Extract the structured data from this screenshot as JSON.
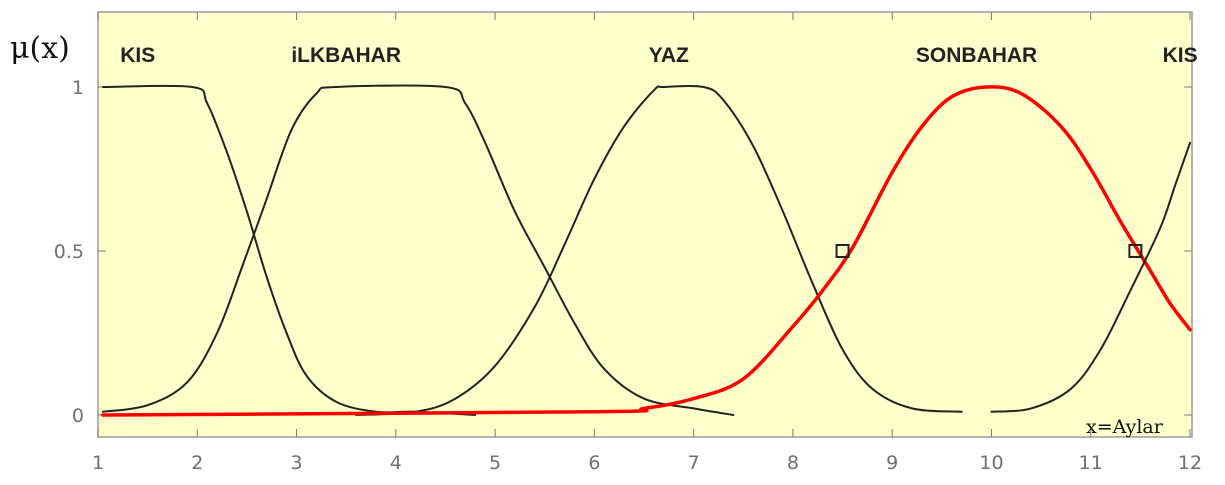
{
  "chart_data": {
    "type": "line",
    "ylabel": "μ(x)",
    "xlabel": "x=Aylar",
    "xlim": [
      1,
      12
    ],
    "ylim": [
      0,
      1
    ],
    "x_ticks": [
      "1",
      "2",
      "3",
      "4",
      "5",
      "6",
      "7",
      "8",
      "9",
      "10",
      "11",
      "12"
    ],
    "y_ticks": [
      "0",
      "0.5",
      "1"
    ],
    "grid": false,
    "background_color": "#ffffcc",
    "highlight_color": "#ff0000",
    "series": [
      {
        "name": "KIS",
        "color": "#222222",
        "label_x": 1.4,
        "points": [
          [
            1.05,
            1
          ],
          [
            1.95,
            1
          ],
          [
            2.1,
            0.95
          ],
          [
            2.3,
            0.8
          ],
          [
            2.5,
            0.62
          ],
          [
            2.7,
            0.42
          ],
          [
            2.9,
            0.25
          ],
          [
            3.1,
            0.12
          ],
          [
            3.4,
            0.04
          ],
          [
            3.8,
            0.01
          ],
          [
            4.2,
            0.01
          ],
          [
            4.8,
            0
          ]
        ]
      },
      {
        "name": "iLKBAHAR",
        "color": "#222222",
        "label_x": 3.5,
        "points": [
          [
            1.05,
            0.01
          ],
          [
            1.5,
            0.03
          ],
          [
            1.9,
            0.1
          ],
          [
            2.2,
            0.25
          ],
          [
            2.45,
            0.45
          ],
          [
            2.7,
            0.66
          ],
          [
            2.95,
            0.87
          ],
          [
            3.2,
            0.98
          ],
          [
            3.4,
            1
          ],
          [
            4.5,
            1
          ],
          [
            4.7,
            0.95
          ],
          [
            4.9,
            0.83
          ],
          [
            5.2,
            0.62
          ],
          [
            5.5,
            0.45
          ],
          [
            5.8,
            0.28
          ],
          [
            6.1,
            0.14
          ],
          [
            6.5,
            0.05
          ],
          [
            7.0,
            0.02
          ],
          [
            7.4,
            0
          ]
        ]
      },
      {
        "name": "YAZ",
        "color": "#222222",
        "label_x": 6.75,
        "points": [
          [
            3.6,
            0
          ],
          [
            4.2,
            0.01
          ],
          [
            4.6,
            0.05
          ],
          [
            5.0,
            0.15
          ],
          [
            5.4,
            0.33
          ],
          [
            5.7,
            0.52
          ],
          [
            6.0,
            0.72
          ],
          [
            6.3,
            0.88
          ],
          [
            6.6,
            0.99
          ],
          [
            6.7,
            1
          ],
          [
            7.1,
            1
          ],
          [
            7.3,
            0.96
          ],
          [
            7.6,
            0.82
          ],
          [
            7.9,
            0.62
          ],
          [
            8.2,
            0.4
          ],
          [
            8.5,
            0.2
          ],
          [
            8.8,
            0.08
          ],
          [
            9.2,
            0.02
          ],
          [
            9.7,
            0.01
          ]
        ]
      },
      {
        "name": "SONBAHAR",
        "color": "#ff0000",
        "label_x": 9.85,
        "points": [
          [
            1.05,
            0
          ],
          [
            6.0,
            0.01
          ],
          [
            6.5,
            0.02
          ],
          [
            7.0,
            0.05
          ],
          [
            7.5,
            0.11
          ],
          [
            8.0,
            0.27
          ],
          [
            8.3,
            0.38
          ],
          [
            8.6,
            0.51
          ],
          [
            9.0,
            0.74
          ],
          [
            9.3,
            0.88
          ],
          [
            9.6,
            0.97
          ],
          [
            9.95,
            1
          ],
          [
            10.3,
            0.98
          ],
          [
            10.7,
            0.88
          ],
          [
            11.0,
            0.75
          ],
          [
            11.3,
            0.59
          ],
          [
            11.6,
            0.44
          ],
          [
            11.8,
            0.34
          ],
          [
            12.0,
            0.26
          ]
        ]
      },
      {
        "name": "KIS",
        "color": "#222222",
        "label_x": 11.9,
        "points": [
          [
            10.0,
            0.01
          ],
          [
            10.4,
            0.02
          ],
          [
            10.8,
            0.08
          ],
          [
            11.1,
            0.2
          ],
          [
            11.4,
            0.38
          ],
          [
            11.7,
            0.57
          ],
          [
            11.85,
            0.7
          ],
          [
            12.0,
            0.83
          ]
        ]
      }
    ],
    "markers": [
      {
        "x": 8.5,
        "y": 0.5
      },
      {
        "x": 11.45,
        "y": 0.5
      }
    ]
  }
}
